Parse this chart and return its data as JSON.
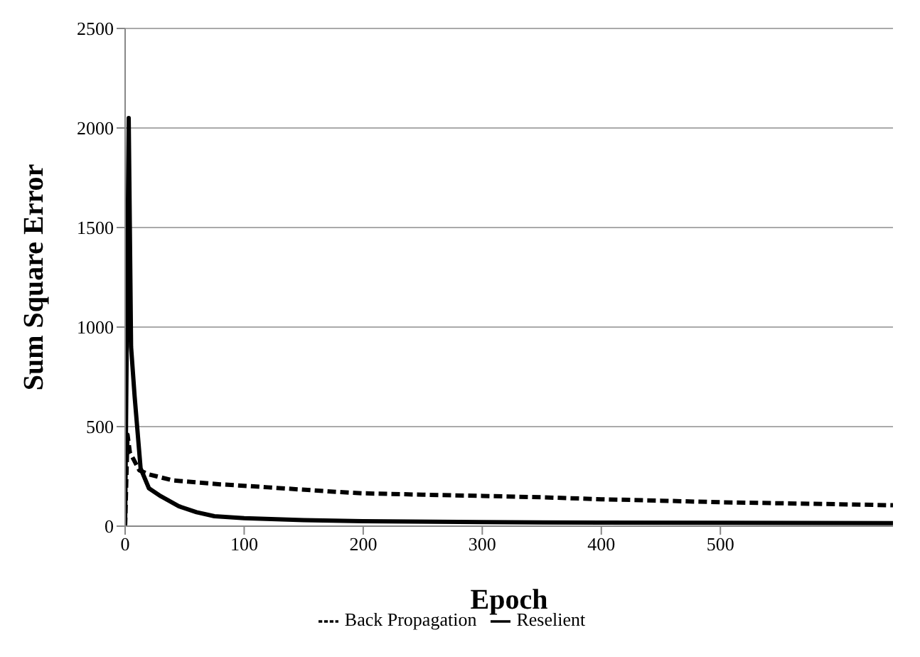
{
  "chart_data": {
    "type": "line",
    "xlabel": "Epoch",
    "ylabel": "Sum Square Error",
    "xlim": [
      0,
      645
    ],
    "xticks": [
      0,
      100,
      200,
      300,
      400,
      500
    ],
    "ylim": [
      0,
      2500
    ],
    "yticks": [
      0,
      500,
      1000,
      1500,
      2000,
      2500
    ],
    "grid": "y",
    "legend": "bottom",
    "marker": "none",
    "series": [
      {
        "name": "Back Propagation",
        "color": "#000000",
        "line_style": "dashed",
        "x": [
          0,
          2,
          4,
          12,
          20,
          40,
          80,
          120,
          170,
          200,
          250,
          300,
          350,
          400,
          450,
          500,
          550,
          600,
          645
        ],
        "values": [
          0,
          460,
          370,
          280,
          260,
          230,
          210,
          195,
          175,
          165,
          158,
          152,
          145,
          135,
          128,
          120,
          115,
          110,
          105
        ]
      },
      {
        "name": "Reselient",
        "color": "#000000",
        "line_style": "solid",
        "x": [
          0,
          3,
          5,
          8,
          13,
          20,
          30,
          45,
          60,
          75,
          100,
          150,
          200,
          300,
          400,
          500,
          645
        ],
        "values": [
          0,
          2050,
          900,
          650,
          290,
          190,
          150,
          100,
          70,
          50,
          40,
          30,
          25,
          20,
          18,
          17,
          15
        ]
      }
    ]
  }
}
